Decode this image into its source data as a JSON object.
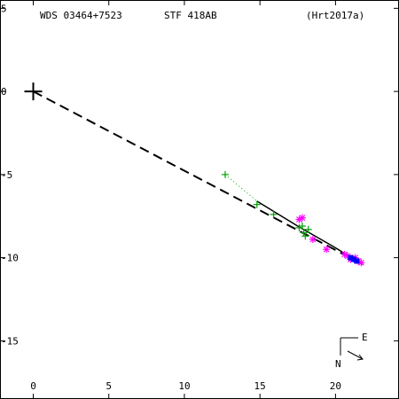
{
  "header": {
    "wds_id": "WDS 03464+7523",
    "discoverer": "STF 418AB",
    "reference": "(Hrt2017a)"
  },
  "compass": {
    "east": "E",
    "north": "N"
  },
  "colors": {
    "axes": "#000000",
    "green_obs": "#00a000",
    "magenta_obs": "#ff00ff",
    "blue_obs": "#0000ff",
    "orbit": "#000000",
    "residual": "#ff0000"
  },
  "chart_data": {
    "type": "scatter",
    "title": "",
    "xlabel": "",
    "ylabel": "",
    "xlim": [
      -2.2,
      24.2
    ],
    "ylim": [
      -18.5,
      5.5
    ],
    "x_ticks": [
      0,
      5,
      10,
      15,
      20
    ],
    "x_tick_labels": [
      "0",
      "5",
      "10",
      "15",
      "20"
    ],
    "y_ticks": [
      5,
      0,
      -5,
      -10,
      -15
    ],
    "y_tick_labels": [
      "5",
      "0",
      "-5",
      "-10",
      "-15"
    ],
    "primary": {
      "x": 0,
      "y": 0,
      "symbol": "large-plus"
    },
    "series": [
      {
        "symbol": "plus",
        "color": "green_obs",
        "points": [
          [
            12.7,
            -5.0
          ],
          [
            14.8,
            -6.8
          ],
          [
            15.9,
            -7.4
          ],
          [
            17.6,
            -8.2
          ],
          [
            17.9,
            -8.5
          ],
          [
            18.0,
            -8.7
          ],
          [
            18.2,
            -8.3
          ],
          [
            17.8,
            -8.1
          ]
        ]
      },
      {
        "symbol": "asterisk",
        "color": "magenta_obs",
        "points": [
          [
            17.6,
            -7.7
          ],
          [
            17.8,
            -7.6
          ],
          [
            18.5,
            -8.9
          ],
          [
            19.4,
            -9.5
          ],
          [
            20.6,
            -9.8
          ],
          [
            20.8,
            -9.9
          ],
          [
            21.0,
            -10.1
          ],
          [
            21.3,
            -10.0
          ],
          [
            21.5,
            -10.2
          ],
          [
            21.7,
            -10.3
          ]
        ]
      },
      {
        "symbol": "square",
        "color": "blue_obs",
        "points": [
          [
            21.0,
            -10.0
          ],
          [
            21.2,
            -10.1
          ],
          [
            21.4,
            -10.2
          ]
        ]
      }
    ],
    "orbit_arc": [
      [
        14.8,
        -6.6
      ],
      [
        17.5,
        -8.1
      ],
      [
        19.8,
        -9.3
      ],
      [
        21.8,
        -10.4
      ]
    ],
    "direction_line": [
      [
        0,
        0
      ],
      [
        21.8,
        -10.4
      ]
    ],
    "dotted_trail": [
      [
        12.7,
        -5.0
      ],
      [
        14.8,
        -6.6
      ]
    ]
  }
}
